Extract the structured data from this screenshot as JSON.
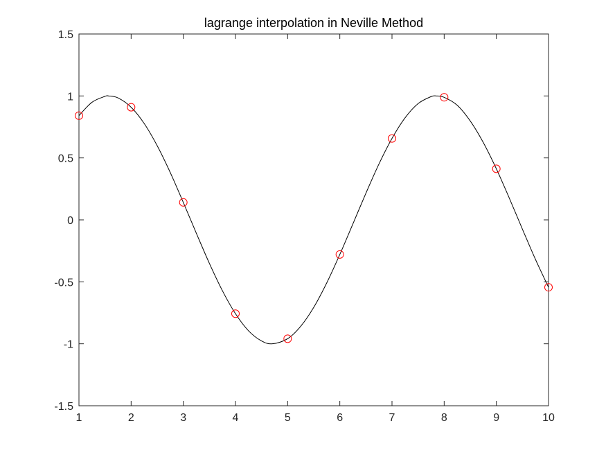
{
  "chart_data": {
    "type": "line",
    "title": "lagrange interpolation in Neville Method",
    "xlabel": "",
    "ylabel": "",
    "xlim": [
      1,
      10
    ],
    "ylim": [
      -1.5,
      1.5
    ],
    "x_ticks": [
      1,
      2,
      3,
      4,
      5,
      6,
      7,
      8,
      9,
      10
    ],
    "x_tick_labels": [
      "1",
      "2",
      "3",
      "4",
      "5",
      "6",
      "7",
      "8",
      "9",
      "10"
    ],
    "y_ticks": [
      -1.5,
      -1,
      -0.5,
      0,
      0.5,
      1,
      1.5
    ],
    "y_tick_labels": [
      "-1.5",
      "-1",
      "-0.5",
      "0",
      "0.5",
      "1",
      "1.5"
    ],
    "grid": false,
    "box": true,
    "series": [
      {
        "kind": "scatter",
        "marker": "circle-open",
        "color": "#ff0000",
        "x": [
          1,
          2,
          3,
          4,
          5,
          6,
          7,
          8,
          9,
          10
        ],
        "values": [
          0.841,
          0.909,
          0.141,
          -0.757,
          -0.959,
          -0.279,
          0.657,
          0.989,
          0.412,
          -0.544
        ]
      },
      {
        "kind": "line",
        "color": "#000000",
        "x": [
          1,
          1.25,
          1.5,
          1.57,
          1.75,
          2,
          2.25,
          2.5,
          2.75,
          3,
          3.25,
          3.5,
          3.75,
          4,
          4.25,
          4.5,
          4.71,
          5,
          5.25,
          5.5,
          5.75,
          6,
          6.25,
          6.5,
          6.75,
          7,
          7.25,
          7.5,
          7.75,
          7.85,
          8,
          8.25,
          8.5,
          8.75,
          9,
          9.25,
          9.5,
          9.75,
          10
        ],
        "values": [
          0.841,
          0.949,
          0.997,
          1.0,
          0.984,
          0.909,
          0.778,
          0.598,
          0.382,
          0.141,
          -0.108,
          -0.351,
          -0.572,
          -0.757,
          -0.895,
          -0.977,
          -1.0,
          -0.959,
          -0.859,
          -0.706,
          -0.508,
          -0.279,
          -0.033,
          0.215,
          0.451,
          0.657,
          0.823,
          0.938,
          0.995,
          1.0,
          0.989,
          0.925,
          0.798,
          0.624,
          0.412,
          0.174,
          -0.075,
          -0.319,
          -0.544
        ]
      }
    ]
  }
}
